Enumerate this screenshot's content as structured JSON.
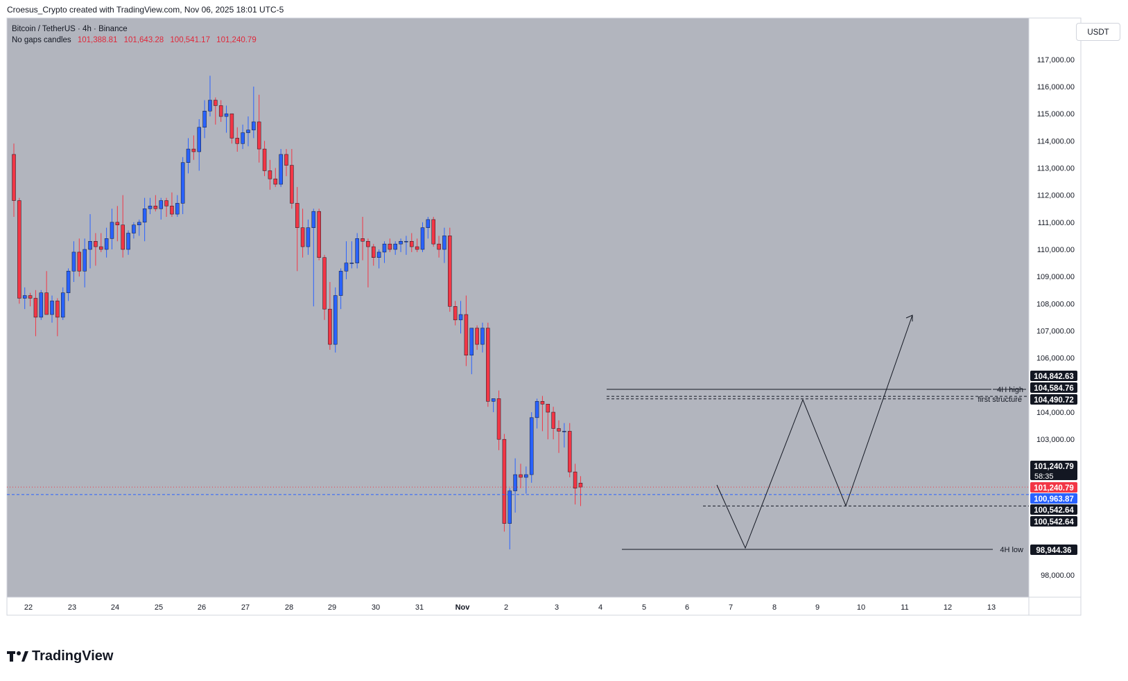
{
  "header": {
    "attribution": "Croesus_Crypto created with TradingView.com, Nov 06, 2025 18:01 UTC-5"
  },
  "legend": {
    "symbol": "Bitcoin / TetherUS · 4h · Binance",
    "candle_type": "No gaps candles",
    "open": "101,388.81",
    "high": "101,643.28",
    "low": "100,541.17",
    "close": "101,240.79"
  },
  "currency_button": "USDT",
  "colors": {
    "background": "#b2b5be",
    "up": "#2962ff",
    "down": "#f23645",
    "price_tag_red": "#f23645",
    "price_tag_blue": "#2962ff"
  },
  "chart_data": {
    "type": "candlestick",
    "timeframe": "4h",
    "yaxis": {
      "ticks": [
        98000,
        103000,
        104000,
        105000,
        106000,
        107000,
        108000,
        109000,
        110000,
        111000,
        112000,
        113000,
        114000,
        115000,
        116000,
        117000
      ],
      "tick_labels": [
        "98,000.00",
        "103,000.00",
        "104,000.00",
        "105,000.00",
        "106,000.00",
        "107,000.00",
        "108,000.00",
        "109,000.00",
        "110,000.00",
        "111,000.00",
        "112,000.00",
        "113,000.00",
        "114,000.00",
        "115,000.00",
        "116,000.00",
        "117,000.00"
      ],
      "ylim": [
        97000,
        118500
      ]
    },
    "xaxis": {
      "tick_labels": [
        "22",
        "23",
        "24",
        "25",
        "26",
        "27",
        "28",
        "29",
        "30",
        "31",
        "Nov",
        "2",
        "3",
        "4",
        "5",
        "6",
        "7",
        "8",
        "9",
        "10",
        "11",
        "12",
        "13"
      ]
    },
    "price_tags": [
      {
        "value": 104842.63,
        "label": "104,842.63",
        "style": "black"
      },
      {
        "value": 104584.76,
        "label": "104,584.76",
        "style": "black"
      },
      {
        "value": 104490.72,
        "label": "104,490.72",
        "style": "black"
      },
      {
        "value": 101240.79,
        "label": "101,240.79",
        "style": "black",
        "sub": "58:35"
      },
      {
        "value": 101240.79,
        "label": "101,240.79",
        "style": "red"
      },
      {
        "value": 100963.87,
        "label": "100,963.87",
        "style": "blue"
      },
      {
        "value": 100542.64,
        "label": "100,542.64",
        "style": "black"
      },
      {
        "value": 100542.64,
        "label": "100,542.64",
        "style": "black"
      },
      {
        "value": 98944.36,
        "label": "98,944.36",
        "style": "black"
      }
    ],
    "levels": [
      {
        "name": "4H high",
        "value": 104842.63
      },
      {
        "name": "first structure",
        "value": 104490.72
      },
      {
        "name": "4H low",
        "value": 98944.36
      }
    ],
    "candles": [
      [
        113500,
        113900,
        111200,
        111800
      ],
      [
        111800,
        111900,
        108000,
        108200
      ],
      [
        108200,
        108600,
        107800,
        108300
      ],
      [
        108300,
        108400,
        107900,
        108200
      ],
      [
        108200,
        108500,
        106800,
        107500
      ],
      [
        107500,
        108500,
        107400,
        108400
      ],
      [
        108400,
        109200,
        107700,
        107600
      ],
      [
        107600,
        108300,
        107300,
        108100
      ],
      [
        108100,
        108200,
        106800,
        107500
      ],
      [
        107500,
        108600,
        107400,
        108400
      ],
      [
        108400,
        109300,
        108100,
        109200
      ],
      [
        109200,
        110300,
        108800,
        109900
      ],
      [
        109900,
        110400,
        109000,
        109200
      ],
      [
        109200,
        110400,
        108600,
        110000
      ],
      [
        110000,
        111300,
        109300,
        110300
      ],
      [
        110300,
        110600,
        109400,
        110100
      ],
      [
        110100,
        110600,
        109900,
        110000
      ],
      [
        110000,
        110800,
        109700,
        110400
      ],
      [
        110400,
        111500,
        110000,
        111000
      ],
      [
        111000,
        111600,
        110300,
        110900
      ],
      [
        110900,
        112000,
        109700,
        110000
      ],
      [
        110000,
        110700,
        109800,
        110600
      ],
      [
        110600,
        111000,
        110400,
        110900
      ],
      [
        110900,
        111100,
        110500,
        111000
      ],
      [
        111000,
        111900,
        110300,
        111500
      ],
      [
        111500,
        111900,
        111300,
        111600
      ],
      [
        111600,
        112000,
        111400,
        111500
      ],
      [
        111500,
        111900,
        111100,
        111800
      ],
      [
        111800,
        111900,
        111200,
        111600
      ],
      [
        111600,
        112100,
        111200,
        111300
      ],
      [
        111300,
        112000,
        111200,
        111700
      ],
      [
        111700,
        113400,
        111300,
        113200
      ],
      [
        113200,
        114100,
        112800,
        113700
      ],
      [
        113700,
        114200,
        113300,
        113600
      ],
      [
        113600,
        114800,
        112900,
        114500
      ],
      [
        114500,
        115500,
        114100,
        115100
      ],
      [
        115100,
        116400,
        114900,
        115500
      ],
      [
        115500,
        115600,
        114600,
        115300
      ],
      [
        115300,
        115500,
        114700,
        114900
      ],
      [
        114900,
        115300,
        114300,
        115000
      ],
      [
        115000,
        115000,
        113900,
        114100
      ],
      [
        114100,
        114500,
        113600,
        113900
      ],
      [
        113900,
        114600,
        113700,
        114300
      ],
      [
        114300,
        114900,
        113800,
        114400
      ],
      [
        114400,
        116000,
        114100,
        114700
      ],
      [
        114700,
        115700,
        113200,
        113700
      ],
      [
        113700,
        114000,
        112700,
        112900
      ],
      [
        112900,
        113300,
        112200,
        112600
      ],
      [
        112600,
        113000,
        112300,
        112400
      ],
      [
        112400,
        113700,
        112300,
        113500
      ],
      [
        113500,
        113700,
        112700,
        113100
      ],
      [
        113100,
        113700,
        111500,
        111700
      ],
      [
        111700,
        112300,
        109200,
        110800
      ],
      [
        110800,
        111500,
        109700,
        110100
      ],
      [
        110100,
        111100,
        109800,
        110800
      ],
      [
        110800,
        111500,
        107900,
        111400
      ],
      [
        111400,
        111500,
        109600,
        109700
      ],
      [
        109700,
        109800,
        107400,
        107800
      ],
      [
        107800,
        108800,
        106300,
        106500
      ],
      [
        106500,
        108600,
        106200,
        108300
      ],
      [
        108300,
        109300,
        107800,
        109200
      ],
      [
        109200,
        110300,
        108900,
        109500
      ],
      [
        109500,
        110300,
        109300,
        109500
      ],
      [
        109500,
        110600,
        109300,
        110400
      ],
      [
        110400,
        111200,
        109600,
        110300
      ],
      [
        110300,
        110400,
        108600,
        110100
      ],
      [
        110100,
        110200,
        109400,
        109700
      ],
      [
        109700,
        110000,
        109300,
        109900
      ],
      [
        109900,
        110300,
        109500,
        110200
      ],
      [
        110200,
        110400,
        109900,
        110000
      ],
      [
        110000,
        110300,
        109800,
        110200
      ],
      [
        110200,
        110400,
        109900,
        110300
      ],
      [
        110300,
        110500,
        109800,
        110300
      ],
      [
        110300,
        110600,
        109900,
        110100
      ],
      [
        110100,
        110400,
        109900,
        110000
      ],
      [
        110000,
        111000,
        109900,
        110800
      ],
      [
        110800,
        111200,
        110400,
        111100
      ],
      [
        111100,
        111200,
        110100,
        110200
      ],
      [
        110200,
        110500,
        109700,
        110000
      ],
      [
        110000,
        110800,
        109500,
        110500
      ],
      [
        110500,
        110800,
        107700,
        107900
      ],
      [
        107900,
        108100,
        107200,
        107400
      ],
      [
        107400,
        108100,
        106900,
        107600
      ],
      [
        107600,
        108300,
        105700,
        106100
      ],
      [
        106100,
        107100,
        105400,
        107100
      ],
      [
        107100,
        107200,
        106300,
        106500
      ],
      [
        106500,
        107300,
        106200,
        107100
      ],
      [
        107100,
        107300,
        104200,
        104400
      ],
      [
        104400,
        104500,
        104000,
        104500
      ],
      [
        104500,
        104800,
        102600,
        103000
      ],
      [
        103000,
        103200,
        99600,
        99900
      ],
      [
        99900,
        101200,
        98944,
        101100
      ],
      [
        101100,
        102300,
        100300,
        101700
      ],
      [
        101700,
        102100,
        101200,
        101600
      ],
      [
        101600,
        102000,
        101000,
        101700
      ],
      [
        101700,
        104000,
        101400,
        103800
      ],
      [
        103800,
        104500,
        103400,
        104400
      ],
      [
        104400,
        104600,
        103300,
        104300
      ],
      [
        104300,
        104300,
        103000,
        104000
      ],
      [
        104000,
        104200,
        103000,
        103400
      ],
      [
        103400,
        103700,
        102500,
        103300
      ],
      [
        103300,
        103600,
        102700,
        103300
      ],
      [
        103300,
        103600,
        101600,
        101800
      ],
      [
        101800,
        102100,
        100600,
        101200
      ],
      [
        101388.81,
        101643.28,
        100541.17,
        101240.79
      ]
    ],
    "projection_path": [
      {
        "date": "Nov 6",
        "value": 101240.79
      },
      {
        "date": "Nov 7",
        "value": 99000
      },
      {
        "date": "Nov 8",
        "value": 104500
      },
      {
        "date": "Nov 9",
        "value": 100542.64
      },
      {
        "date": "Nov 10",
        "value": 107600
      }
    ]
  },
  "footer": {
    "brand": "TradingView"
  }
}
